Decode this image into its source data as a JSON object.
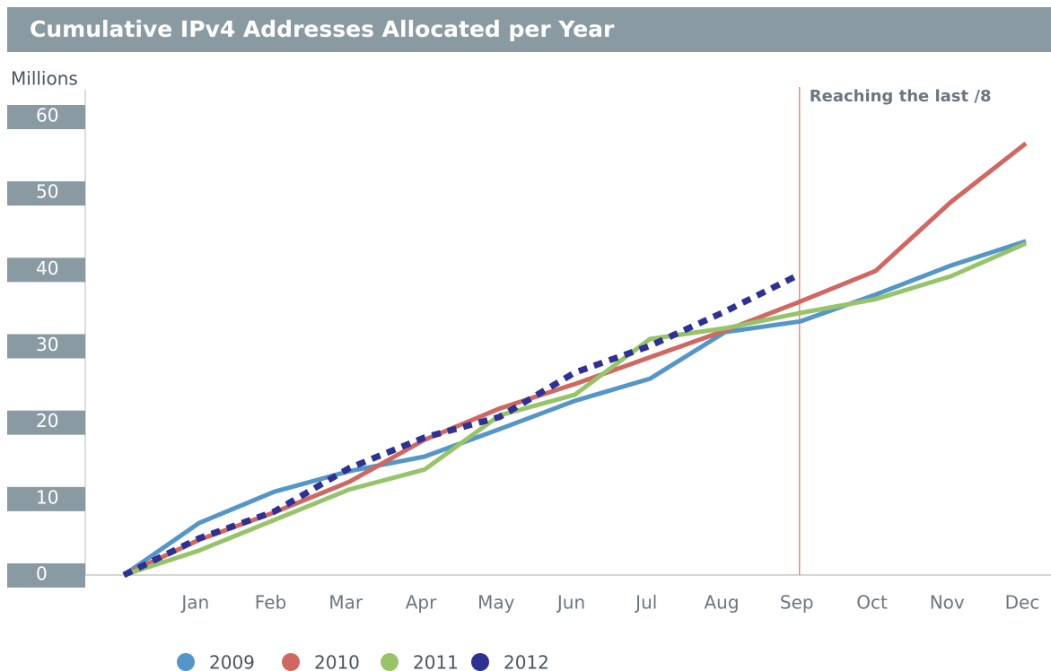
{
  "chart_data": {
    "type": "line",
    "title": "Cumulative IPv4 Addresses Allocated per Year",
    "y_label": "Millions",
    "annotation": "Reaching the last /8",
    "categories": [
      null,
      "Jan",
      "Feb",
      "Mar",
      "Apr",
      "May",
      "Jun",
      "Jul",
      "Aug",
      "Sep",
      "Oct",
      "Nov",
      "Dec"
    ],
    "series": [
      {
        "name": "2009",
        "color": "#5596c8",
        "values": [
          0,
          6.8,
          10.9,
          13.6,
          15.5,
          19.1,
          22.8,
          25.7,
          31.8,
          33.2,
          36.7,
          40.5,
          43.7
        ]
      },
      {
        "name": "2010",
        "color": "#cf6862",
        "values": [
          0,
          4.6,
          8.2,
          12.2,
          17.7,
          21.8,
          25.0,
          28.5,
          32.0,
          35.8,
          39.8,
          48.8,
          56.5
        ]
      },
      {
        "name": "2011",
        "color": "#97c46b",
        "values": [
          0,
          3.2,
          7.2,
          11.2,
          13.8,
          20.9,
          23.6,
          30.9,
          32.3,
          34.3,
          36.1,
          39.1,
          43.4
        ]
      },
      {
        "name": "2012",
        "color": "#2e3191",
        "dashed": true,
        "values": [
          0,
          4.8,
          8.3,
          14.0,
          18.0,
          20.7,
          26.5,
          30.0,
          34.5,
          39.4,
          null,
          null,
          null
        ]
      }
    ],
    "ylim": [
      0,
      60
    ],
    "yticks": [
      0,
      10,
      20,
      30,
      40,
      50,
      60
    ]
  }
}
